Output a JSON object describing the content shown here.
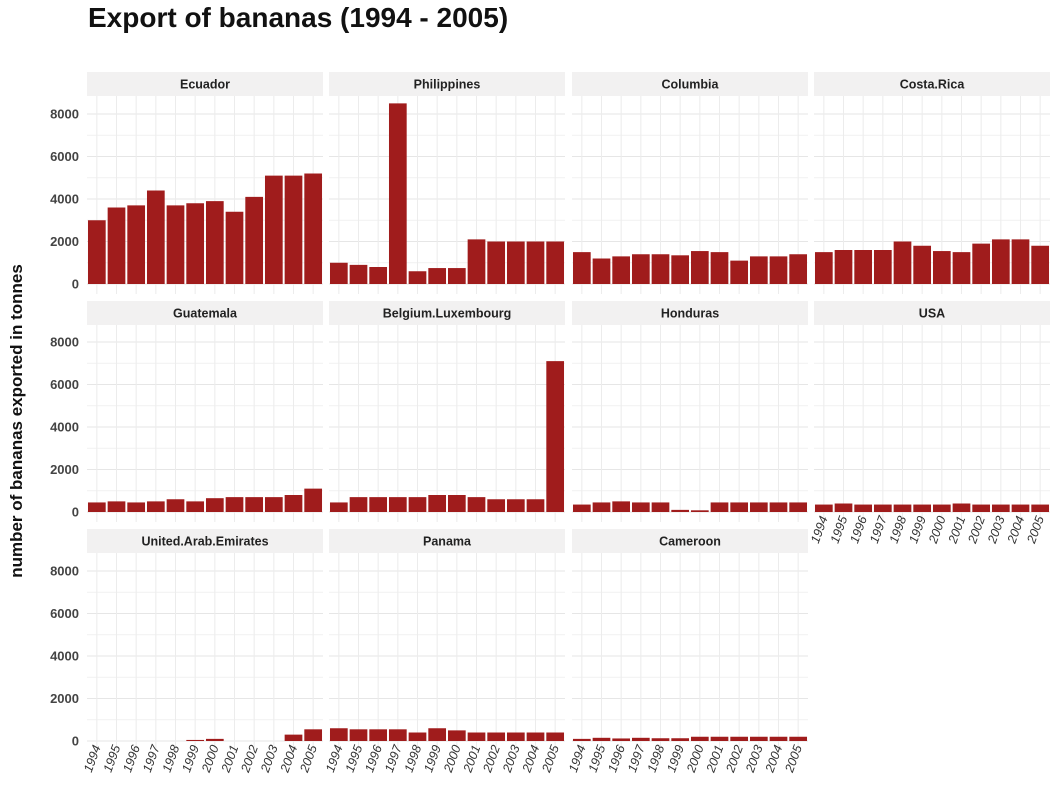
{
  "chart_data": {
    "type": "bar",
    "layout": "faceted-grid",
    "title": "Export of bananas (1994 - 2005)",
    "xlabel": "",
    "ylabel": "number of bananas exported in tonnes",
    "ylim": [
      0,
      9000
    ],
    "yticks": [
      0,
      2000,
      4000,
      6000,
      8000
    ],
    "grid": true,
    "bar_color": "#a01c1c",
    "strip_color": "#f2f1f1",
    "categories": [
      "1994",
      "1995",
      "1996",
      "1997",
      "1998",
      "1999",
      "2000",
      "2001",
      "2002",
      "2003",
      "2004",
      "2005"
    ],
    "facets": [
      {
        "name": "Ecuador",
        "values": [
          3000,
          3600,
          3700,
          4400,
          3700,
          3800,
          3900,
          3400,
          4100,
          5100,
          5100,
          5200
        ]
      },
      {
        "name": "Philippines",
        "values": [
          1000,
          900,
          800,
          8500,
          600,
          750,
          750,
          2100,
          2000,
          2000,
          2000,
          2000
        ]
      },
      {
        "name": "Columbia",
        "values": [
          1500,
          1200,
          1300,
          1400,
          1400,
          1350,
          1550,
          1500,
          1100,
          1300,
          1300,
          1400
        ]
      },
      {
        "name": "Costa.Rica",
        "values": [
          1500,
          1600,
          1600,
          1600,
          2000,
          1800,
          1550,
          1500,
          1900,
          2100,
          2100,
          1800
        ]
      },
      {
        "name": "Guatemala",
        "values": [
          450,
          500,
          450,
          500,
          600,
          500,
          650,
          700,
          700,
          700,
          800,
          1100
        ]
      },
      {
        "name": "Belgium.Luxembourg",
        "values": [
          450,
          700,
          700,
          700,
          700,
          800,
          800,
          700,
          600,
          600,
          600,
          7100
        ]
      },
      {
        "name": "Honduras",
        "values": [
          350,
          450,
          500,
          450,
          450,
          100,
          80,
          450,
          450,
          450,
          450,
          450
        ]
      },
      {
        "name": "USA",
        "values": [
          350,
          400,
          350,
          350,
          350,
          350,
          350,
          400,
          350,
          350,
          350,
          350
        ]
      },
      {
        "name": "United.Arab.Emirates",
        "values": [
          0,
          0,
          0,
          0,
          0,
          50,
          100,
          0,
          0,
          0,
          300,
          550
        ]
      },
      {
        "name": "Panama",
        "values": [
          600,
          550,
          550,
          550,
          400,
          600,
          500,
          400,
          400,
          400,
          400,
          400
        ]
      },
      {
        "name": "Cameroon",
        "values": [
          100,
          150,
          120,
          150,
          130,
          130,
          200,
          200,
          200,
          200,
          200,
          200
        ]
      }
    ]
  }
}
